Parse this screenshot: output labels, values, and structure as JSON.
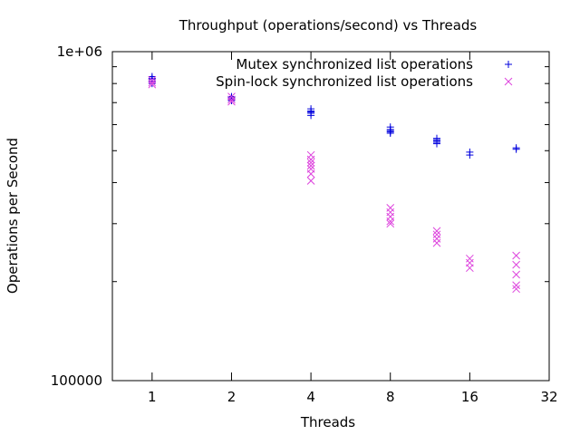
{
  "chart_data": {
    "type": "scatter",
    "title": "Throughput (operations/second) vs Threads",
    "xlabel": "Threads",
    "ylabel": "Operations per Second",
    "x_scale": "log2",
    "y_scale": "log10",
    "xlim": [
      0.707,
      32
    ],
    "ylim": [
      100000,
      1000000
    ],
    "x_ticks": [
      1,
      2,
      4,
      8,
      16,
      32
    ],
    "x_tick_labels": [
      "1",
      "2",
      "4",
      "8",
      "16",
      "32"
    ],
    "y_tick_labels": [
      {
        "value": 100000,
        "label": "100000"
      },
      {
        "value": 1000000,
        "label": "1e+06"
      }
    ],
    "legend_position": "top-right",
    "series": [
      {
        "name": "Mutex synchronized list operations",
        "marker": "plus",
        "color": "#0000dd",
        "points": [
          {
            "x": 1,
            "y": 840000
          },
          {
            "x": 1,
            "y": 825000
          },
          {
            "x": 1,
            "y": 810000
          },
          {
            "x": 1,
            "y": 800000
          },
          {
            "x": 1,
            "y": 830000
          },
          {
            "x": 1,
            "y": 815000
          },
          {
            "x": 2,
            "y": 730000
          },
          {
            "x": 2,
            "y": 720000
          },
          {
            "x": 2,
            "y": 715000
          },
          {
            "x": 2,
            "y": 710000
          },
          {
            "x": 2,
            "y": 725000
          },
          {
            "x": 4,
            "y": 670000
          },
          {
            "x": 4,
            "y": 660000
          },
          {
            "x": 4,
            "y": 650000
          },
          {
            "x": 4,
            "y": 640000
          },
          {
            "x": 4,
            "y": 655000
          },
          {
            "x": 8,
            "y": 590000
          },
          {
            "x": 8,
            "y": 580000
          },
          {
            "x": 8,
            "y": 575000
          },
          {
            "x": 8,
            "y": 570000
          },
          {
            "x": 8,
            "y": 565000
          },
          {
            "x": 12,
            "y": 545000
          },
          {
            "x": 12,
            "y": 535000
          },
          {
            "x": 12,
            "y": 530000
          },
          {
            "x": 12,
            "y": 525000
          },
          {
            "x": 12,
            "y": 540000
          },
          {
            "x": 16,
            "y": 495000
          },
          {
            "x": 16,
            "y": 485000
          },
          {
            "x": 24,
            "y": 510000
          },
          {
            "x": 24,
            "y": 505000
          }
        ]
      },
      {
        "name": "Spin-lock synchronized list operations",
        "marker": "cross",
        "color": "#dd44dd",
        "points": [
          {
            "x": 1,
            "y": 820000
          },
          {
            "x": 1,
            "y": 805000
          },
          {
            "x": 1,
            "y": 795000
          },
          {
            "x": 2,
            "y": 730000
          },
          {
            "x": 2,
            "y": 715000
          },
          {
            "x": 2,
            "y": 705000
          },
          {
            "x": 4,
            "y": 485000
          },
          {
            "x": 4,
            "y": 470000
          },
          {
            "x": 4,
            "y": 460000
          },
          {
            "x": 4,
            "y": 450000
          },
          {
            "x": 4,
            "y": 440000
          },
          {
            "x": 4,
            "y": 425000
          },
          {
            "x": 4,
            "y": 405000
          },
          {
            "x": 8,
            "y": 335000
          },
          {
            "x": 8,
            "y": 325000
          },
          {
            "x": 8,
            "y": 315000
          },
          {
            "x": 8,
            "y": 305000
          },
          {
            "x": 8,
            "y": 300000
          },
          {
            "x": 12,
            "y": 285000
          },
          {
            "x": 12,
            "y": 278000
          },
          {
            "x": 12,
            "y": 270000
          },
          {
            "x": 12,
            "y": 262000
          },
          {
            "x": 16,
            "y": 235000
          },
          {
            "x": 16,
            "y": 228000
          },
          {
            "x": 16,
            "y": 220000
          },
          {
            "x": 24,
            "y": 240000
          },
          {
            "x": 24,
            "y": 225000
          },
          {
            "x": 24,
            "y": 210000
          },
          {
            "x": 24,
            "y": 195000
          },
          {
            "x": 24,
            "y": 190000
          }
        ]
      }
    ]
  }
}
